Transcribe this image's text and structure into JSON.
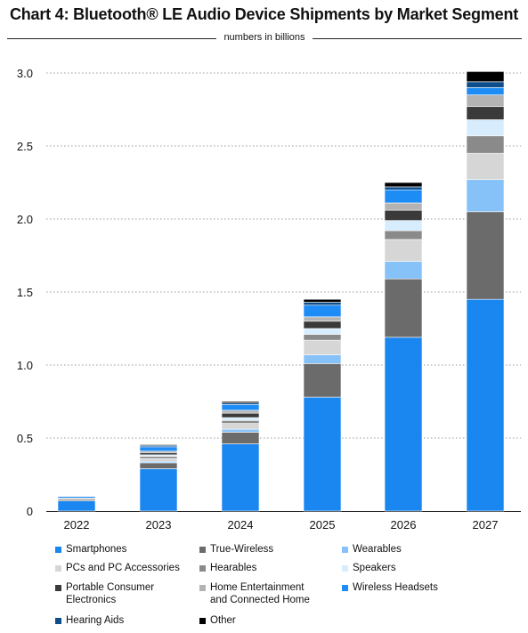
{
  "title": "Chart 4: Bluetooth® LE Audio Device Shipments by Market Segment",
  "subtitle": "numbers  in billions",
  "chart_data": {
    "type": "bar",
    "stacked": true,
    "categories": [
      "2022",
      "2023",
      "2024",
      "2025",
      "2026",
      "2027"
    ],
    "ylim": [
      0,
      3.0
    ],
    "yticks": [
      "0",
      "0.5",
      "1.0",
      "1.5",
      "2.0",
      "2.5",
      "3.0"
    ],
    "ytick_values": [
      0,
      0.5,
      1.0,
      1.5,
      2.0,
      2.5,
      3.0
    ],
    "grid": "horizontal dotted",
    "legend_position": "bottom",
    "series": [
      {
        "name": "Smartphones",
        "color": "#1a86f0",
        "values": [
          0.07,
          0.29,
          0.46,
          0.78,
          1.19,
          1.45
        ]
      },
      {
        "name": "True-Wireless",
        "color": "#6b6b6b",
        "values": [
          0.01,
          0.04,
          0.08,
          0.23,
          0.4,
          0.6
        ]
      },
      {
        "name": "Wearables",
        "color": "#86c2f8",
        "values": [
          0.0,
          0.01,
          0.02,
          0.06,
          0.12,
          0.22
        ]
      },
      {
        "name": "PCs and PC Accessories",
        "color": "#d6d6d6",
        "values": [
          0.0,
          0.02,
          0.04,
          0.1,
          0.15,
          0.18
        ]
      },
      {
        "name": "Hearables",
        "color": "#8a8a8a",
        "values": [
          0.005,
          0.015,
          0.02,
          0.04,
          0.06,
          0.12
        ]
      },
      {
        "name": "Speakers",
        "color": "#d7ecfd",
        "values": [
          0.0,
          0.01,
          0.02,
          0.04,
          0.07,
          0.11
        ]
      },
      {
        "name": "Portable Consumer\nElectronics",
        "color": "#3a3a3a",
        "values": [
          0.005,
          0.015,
          0.03,
          0.05,
          0.07,
          0.09
        ]
      },
      {
        "name": "Home Entertainment\nand Connected Home",
        "color": "#b3b3b3",
        "values": [
          0.0,
          0.01,
          0.02,
          0.03,
          0.05,
          0.08
        ]
      },
      {
        "name": "Wireless Headsets",
        "color": "#1e8cf5",
        "values": [
          0.01,
          0.03,
          0.04,
          0.08,
          0.09,
          0.05
        ]
      },
      {
        "name": "Hearing Aids",
        "color": "#0c4d8a",
        "values": [
          0.0,
          0.01,
          0.01,
          0.02,
          0.02,
          0.04
        ]
      },
      {
        "name": "Other",
        "color": "#000000",
        "values": [
          0.0,
          0.005,
          0.01,
          0.02,
          0.03,
          0.07
        ]
      }
    ],
    "legend_order": [
      "Smartphones",
      "True-Wireless",
      "Wearables",
      "PCs and PC Accessories",
      "Hearables",
      "Speakers",
      "Portable Consumer\nElectronics",
      "Home Entertainment\nand Connected Home",
      "Wireless Headsets",
      "Hearing Aids",
      "Other"
    ]
  }
}
